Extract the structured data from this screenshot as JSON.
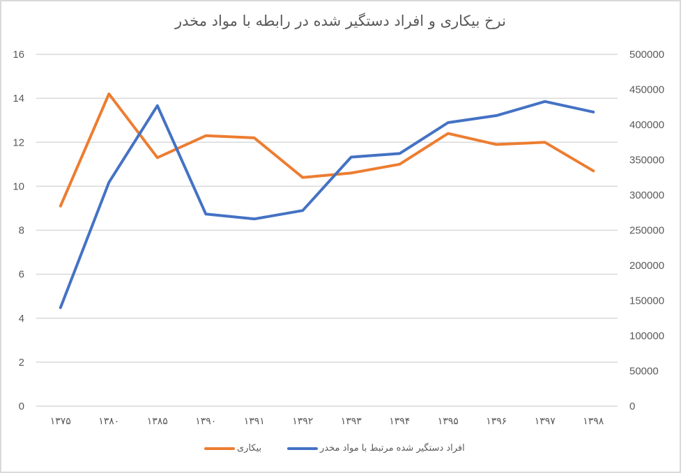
{
  "chart_data": {
    "type": "line",
    "title": "نرخ بیکاری و افراد دستگیر شده در رابطه با مواد مخدر",
    "categories": [
      "۱۳۷۵",
      "۱۳۸۰",
      "۱۳۸۵",
      "۱۳۹۰",
      "۱۳۹۱",
      "۱۳۹۲",
      "۱۳۹۳",
      "۱۳۹۴",
      "۱۳۹۵",
      "۱۳۹۶",
      "۱۳۹۷",
      "۱۳۹۸"
    ],
    "series": [
      {
        "name": "بیکاری",
        "axis": "left",
        "color": "#ED7D31",
        "values": [
          9.1,
          14.2,
          11.3,
          12.3,
          12.2,
          10.4,
          10.6,
          11.0,
          12.4,
          11.9,
          12.0,
          10.7
        ]
      },
      {
        "name": "افراد دستگیر شده مرتبط با مواد مخدر",
        "axis": "right",
        "color": "#4472C4",
        "values": [
          140000,
          318000,
          427000,
          273000,
          266000,
          278000,
          354000,
          359000,
          403000,
          413000,
          433000,
          418000
        ]
      }
    ],
    "left_axis": {
      "ylim": [
        0,
        16
      ],
      "ticks": [
        "0",
        "2",
        "4",
        "6",
        "8",
        "10",
        "12",
        "14",
        "16"
      ]
    },
    "right_axis": {
      "ylim": [
        0,
        500000
      ],
      "ticks": [
        "0",
        "50000",
        "100000",
        "150000",
        "200000",
        "250000",
        "300000",
        "350000",
        "400000",
        "450000",
        "500000"
      ]
    },
    "xlabel": "",
    "ylabel": "",
    "grid": true,
    "legend_position": "bottom"
  },
  "legend": {
    "items": [
      {
        "label": "بیکاری",
        "color": "#ED7D31"
      },
      {
        "label": "افراد دستگیر شده مرتبط با مواد مخدر",
        "color": "#4472C4"
      }
    ]
  }
}
